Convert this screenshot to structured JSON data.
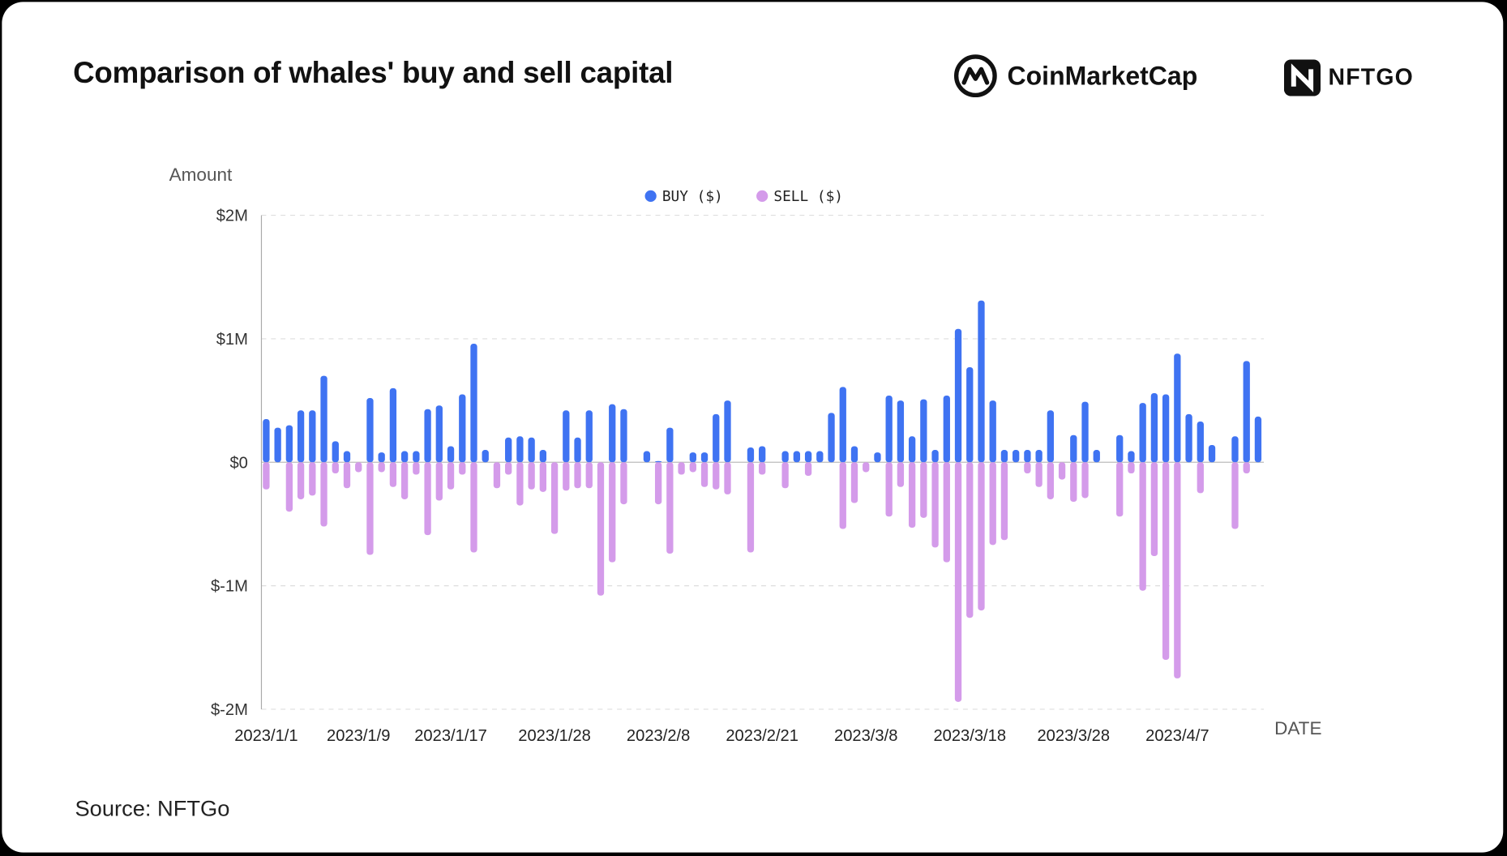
{
  "title": "Comparison of whales' buy and sell capital",
  "logos": {
    "cmc": "CoinMarketCap",
    "nftgo": "NFTGO"
  },
  "source": "Source: NFTGo",
  "colors": {
    "buy": "#3f73f2",
    "sell": "#d49bea"
  },
  "chart_data": {
    "type": "bar",
    "title": "Comparison of whales' buy and sell capital",
    "ylabel": "Amount",
    "xlabel": "DATE",
    "ylim": [
      -2000000,
      2000000
    ],
    "yticks": [
      2000000,
      1000000,
      0,
      -1000000,
      -2000000
    ],
    "ytick_labels": [
      "$2M",
      "$1M",
      "$0",
      "$-1M",
      "$-2M"
    ],
    "grid": true,
    "legend_position": "top-center",
    "xtick_labels": [
      {
        "index": 0,
        "label": "2023/1/1"
      },
      {
        "index": 8,
        "label": "2023/1/9"
      },
      {
        "index": 16,
        "label": "2023/1/17"
      },
      {
        "index": 25,
        "label": "2023/1/28"
      },
      {
        "index": 34,
        "label": "2023/2/8"
      },
      {
        "index": 43,
        "label": "2023/2/21"
      },
      {
        "index": 52,
        "label": "2023/3/8"
      },
      {
        "index": 61,
        "label": "2023/3/18"
      },
      {
        "index": 70,
        "label": "2023/3/28"
      },
      {
        "index": 79,
        "label": "2023/4/7"
      }
    ],
    "series": [
      {
        "name": "BUY ($)",
        "unit": "M$",
        "values": [
          0.35,
          0.28,
          0.3,
          0.42,
          0.42,
          0.7,
          0.17,
          0.09,
          0,
          0.52,
          0.08,
          0.6,
          0.09,
          0.09,
          0.43,
          0.46,
          0.13,
          0.55,
          0.96,
          0.1,
          0,
          0.2,
          0.21,
          0.2,
          0.1,
          0,
          0.42,
          0.2,
          0.42,
          0,
          0.47,
          0.43,
          0,
          0.09,
          0.01,
          0.28,
          0,
          0.08,
          0.08,
          0.39,
          0.5,
          0,
          0.12,
          0.13,
          0,
          0.09,
          0.09,
          0.09,
          0.09,
          0.4,
          0.61,
          0.13,
          0,
          0.08,
          0.54,
          0.5,
          0.21,
          0.51,
          0.1,
          0.54,
          1.08,
          0.77,
          1.31,
          0.5,
          0.1,
          0.1,
          0.1,
          0.1,
          0.42,
          0,
          0.22,
          0.49,
          0.1,
          0,
          0.22,
          0.09,
          0.48,
          0.56,
          0.55,
          0.88,
          0.39,
          0.33,
          0.14,
          0,
          0.21,
          0.82,
          0.37
        ]
      },
      {
        "name": "SELL ($)",
        "unit": "M$",
        "values": [
          -0.22,
          0,
          -0.4,
          -0.3,
          -0.27,
          -0.52,
          -0.09,
          -0.21,
          -0.08,
          -0.75,
          -0.08,
          -0.2,
          -0.3,
          -0.1,
          -0.59,
          -0.31,
          -0.22,
          -0.1,
          -0.73,
          0,
          -0.21,
          -0.1,
          -0.35,
          -0.22,
          -0.24,
          -0.58,
          -0.23,
          -0.21,
          -0.21,
          -1.08,
          -0.81,
          -0.34,
          0,
          0,
          -0.34,
          -0.74,
          -0.1,
          -0.08,
          -0.2,
          -0.22,
          -0.26,
          0,
          -0.73,
          -0.1,
          0,
          -0.21,
          0,
          -0.11,
          0,
          0,
          -0.54,
          -0.33,
          -0.08,
          0,
          -0.44,
          -0.2,
          -0.53,
          -0.45,
          -0.69,
          -0.81,
          -1.94,
          -1.26,
          -1.2,
          -0.67,
          -0.63,
          0,
          -0.09,
          -0.2,
          -0.3,
          -0.14,
          -0.32,
          -0.29,
          0,
          0,
          -0.44,
          -0.09,
          -1.04,
          -0.76,
          -1.6,
          -1.75,
          0,
          -0.25,
          0,
          0,
          -0.54,
          -0.09,
          0
        ]
      }
    ]
  }
}
